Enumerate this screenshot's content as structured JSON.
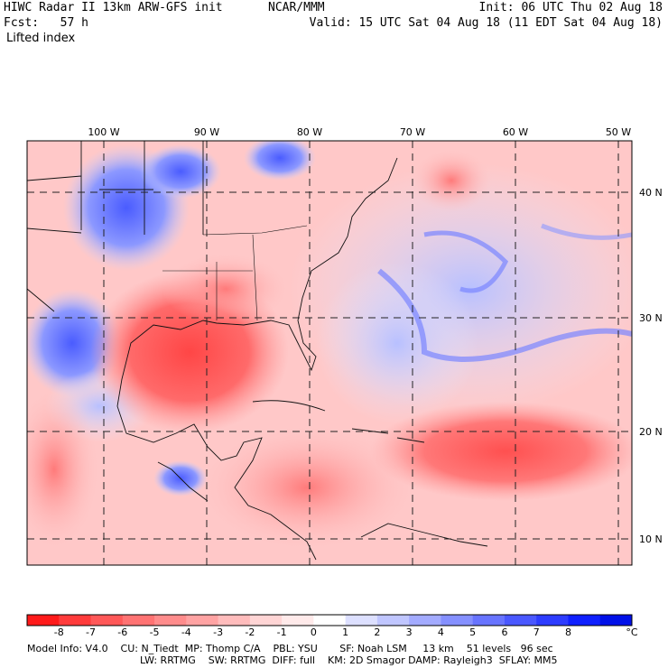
{
  "header": {
    "title_line": "HIWC Radar II 13km ARW-GFS init",
    "org": "NCAR/MMM",
    "init": "Init: 06 UTC Thu 02 Aug 18",
    "fcst": "Fcst:   57 h",
    "valid": "Valid: 15 UTC Sat 04 Aug 18 (11 EDT Sat 04 Aug 18)",
    "field": "Lifted index"
  },
  "map": {
    "lon_labels": [
      "100 W",
      "90 W",
      "80 W",
      "70 W",
      "60 W",
      "50 W"
    ],
    "lat_labels": [
      "40 N",
      "30 N",
      "20 N",
      "10 N"
    ]
  },
  "colorbar": {
    "ticks": [
      "-8",
      "-7",
      "-6",
      "-5",
      "-4",
      "-3",
      "-2",
      "-1",
      "0",
      "1",
      "2",
      "3",
      "4",
      "5",
      "6",
      "7",
      "8"
    ],
    "unit": "°C",
    "colors": [
      "#ff1a1a",
      "#ff3b3b",
      "#ff5858",
      "#ff7373",
      "#ff8c8c",
      "#ffa3a3",
      "#ffbcbc",
      "#ffd5d5",
      "#ffeaea",
      "#ffffff",
      "#dde0ff",
      "#c0c6ff",
      "#a3abff",
      "#8590ff",
      "#6874ff",
      "#4a58ff",
      "#2d3cff",
      "#0f20ff",
      "#0010e8"
    ]
  },
  "footer": {
    "line1": "Model Info: V4.0    CU: N_Tiedt  MP: Thomp C/A    PBL: YSU       SF: Noah LSM     13 km    51 levels   96 sec",
    "line2": "LW: RRTMG    SW: RRTMG  DIFF: full    KM: 2D Smagor DAMP: Rayleigh3  SFLAY: MM5"
  }
}
